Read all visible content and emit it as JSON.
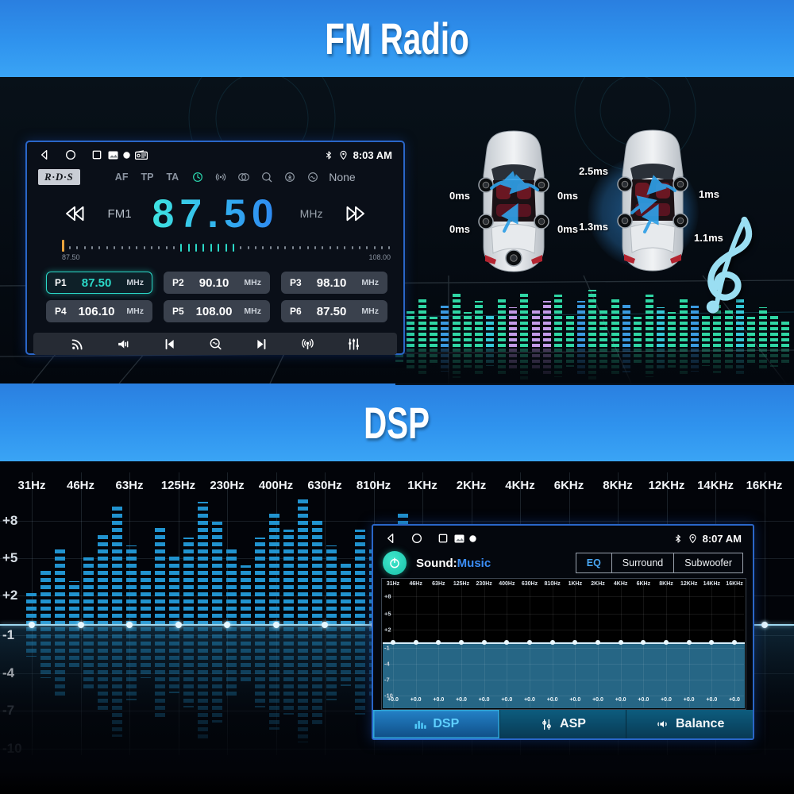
{
  "banners": {
    "fm_title": "FM Radio",
    "dsp_title": "DSP"
  },
  "radio": {
    "status": {
      "time": "8:03 AM"
    },
    "rds": {
      "badge": "R·D·S",
      "flags": [
        "AF",
        "TP",
        "TA"
      ],
      "icons": [
        "ct-clock-icon",
        "signal-icon",
        "stereo-icon",
        "search-icon",
        "download-icon",
        "scan-wave-icon"
      ],
      "mode": "None"
    },
    "tuner": {
      "band": "FM1",
      "frequency": "87.50",
      "unit": "MHz"
    },
    "scale": {
      "min": "87.50",
      "max": "108.00",
      "tick_count": 44,
      "accent_start": 15,
      "accent_end": 22
    },
    "presets": [
      {
        "label": "P1",
        "freq": "87.50",
        "unit": "MHz",
        "active": true
      },
      {
        "label": "P2",
        "freq": "90.10",
        "unit": "MHz",
        "active": false
      },
      {
        "label": "P3",
        "freq": "98.10",
        "unit": "MHz",
        "active": false
      },
      {
        "label": "P4",
        "freq": "106.10",
        "unit": "MHz",
        "active": false
      },
      {
        "label": "P5",
        "freq": "108.00",
        "unit": "MHz",
        "active": false
      },
      {
        "label": "P6",
        "freq": "87.50",
        "unit": "MHz",
        "active": false
      }
    ],
    "controls": [
      "rss-icon",
      "volume-icon",
      "prev-track-icon",
      "scan-icon",
      "next-track-icon",
      "broadcast-icon",
      "eq-sliders-icon"
    ]
  },
  "delays": {
    "left_car": {
      "front_left": "0ms",
      "front_right": "0ms",
      "rear_left": "0ms",
      "rear_right": "0ms"
    },
    "right_car": {
      "front_left": "2.5ms",
      "front_right": "1ms",
      "rear_left": "1.3ms",
      "rear_right": "1.1ms"
    }
  },
  "dsp": {
    "status": {
      "time": "8:07 AM"
    },
    "sound_label": "Sound:",
    "sound_value": "Music",
    "modes": [
      {
        "label": "EQ",
        "active": true
      },
      {
        "label": "Surround",
        "active": false
      },
      {
        "label": "Subwoofer",
        "active": false
      }
    ],
    "tabs": [
      {
        "label": "DSP",
        "icon": "dsp-bars-icon",
        "active": true
      },
      {
        "label": "ASP",
        "icon": "asp-sliders-icon",
        "active": false
      },
      {
        "label": "Balance",
        "icon": "balance-speaker-icon",
        "active": false
      }
    ],
    "gain_value": "+0.0"
  },
  "chart_data": {
    "type": "area",
    "title": "16-band DSP equalizer (flat curve at 0 dB)",
    "categories": [
      "31Hz",
      "46Hz",
      "63Hz",
      "125Hz",
      "230Hz",
      "400Hz",
      "630Hz",
      "810Hz",
      "1KHz",
      "2KHz",
      "4KHz",
      "6KHz",
      "8KHz",
      "12KHz",
      "14KHz",
      "16KHz"
    ],
    "values": [
      0,
      0,
      0,
      0,
      0,
      0,
      0,
      0,
      0,
      0,
      0,
      0,
      0,
      0,
      0,
      0
    ],
    "y_tick_labels": [
      "+8",
      "+5",
      "+2",
      "-1",
      "-4",
      "-7",
      "-10"
    ],
    "ylim": [
      -10,
      10
    ],
    "grid": true,
    "background_spectrum_bars": [
      40,
      70,
      95,
      55,
      85,
      115,
      150,
      100,
      70,
      125,
      90,
      110,
      155,
      130,
      95,
      75,
      110,
      140,
      120,
      158,
      135,
      100,
      80,
      120,
      95,
      65,
      140,
      110,
      85,
      55,
      100,
      75,
      120,
      90,
      60,
      80,
      50,
      65,
      45
    ],
    "top_spectrum_bars": [
      30,
      45,
      62,
      38,
      52,
      68,
      44,
      58,
      40,
      62,
      50,
      70,
      46,
      58,
      66,
      42,
      58,
      72,
      48,
      62,
      55,
      38,
      66,
      50,
      44,
      60,
      52,
      40,
      56,
      46,
      62,
      38,
      50,
      42,
      34
    ],
    "top_spectrum_colors": [
      "g",
      "g",
      "g",
      "g",
      "b",
      "g",
      "g",
      "g",
      "t",
      "g",
      "p",
      "g",
      "p",
      "p",
      "g",
      "g",
      "b",
      "g",
      "g",
      "g",
      "b",
      "g",
      "g",
      "t",
      "g",
      "g",
      "b",
      "g",
      "g",
      "g",
      "t",
      "g",
      "g",
      "g",
      "g"
    ]
  }
}
